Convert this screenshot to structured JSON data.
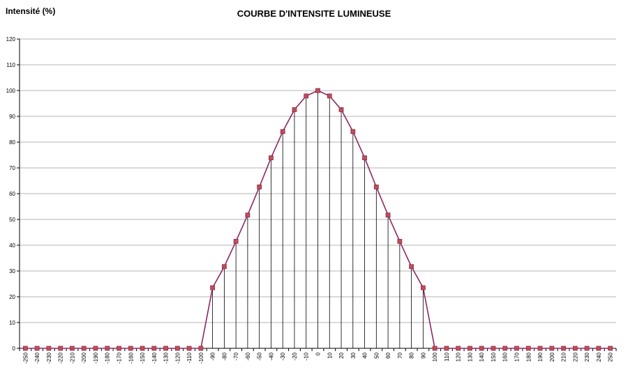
{
  "chart_data": {
    "type": "line",
    "title": "COURBE D'INTENSITE LUMINEUSE",
    "ylabel": "Intensité (%)",
    "xlabel": "",
    "ylim": [
      0,
      120
    ],
    "yticks": [
      0,
      10,
      20,
      30,
      40,
      50,
      60,
      70,
      80,
      90,
      100,
      110,
      120
    ],
    "grid": true,
    "x": [
      -250,
      -240,
      -230,
      -220,
      -210,
      -200,
      -190,
      -180,
      -170,
      -160,
      -150,
      -140,
      -130,
      -120,
      -110,
      -100,
      -90,
      -80,
      -70,
      -60,
      -50,
      -40,
      -30,
      -20,
      -10,
      0,
      10,
      20,
      30,
      40,
      50,
      60,
      70,
      80,
      90,
      100,
      110,
      120,
      130,
      140,
      150,
      160,
      170,
      180,
      190,
      200,
      210,
      220,
      230,
      240,
      250
    ],
    "series": [
      {
        "values": [
          0,
          0,
          0,
          0,
          0,
          0,
          0,
          0,
          0,
          0,
          0,
          0,
          0,
          0,
          0,
          0,
          23.5,
          31.7,
          41.5,
          51.7,
          62.6,
          73.9,
          84.1,
          92.6,
          97.9,
          100,
          97.9,
          92.6,
          84.1,
          73.9,
          62.6,
          51.7,
          41.5,
          31.7,
          23.5,
          0,
          0,
          0,
          0,
          0,
          0,
          0,
          0,
          0,
          0,
          0,
          0,
          0,
          0,
          0,
          0
        ]
      }
    ],
    "colors": {
      "line": "#8c2860",
      "marker_fill": "#c0504d",
      "marker_edge": "#8c2860",
      "grid": "#b4b4b4",
      "drop_line": "#000000"
    }
  }
}
